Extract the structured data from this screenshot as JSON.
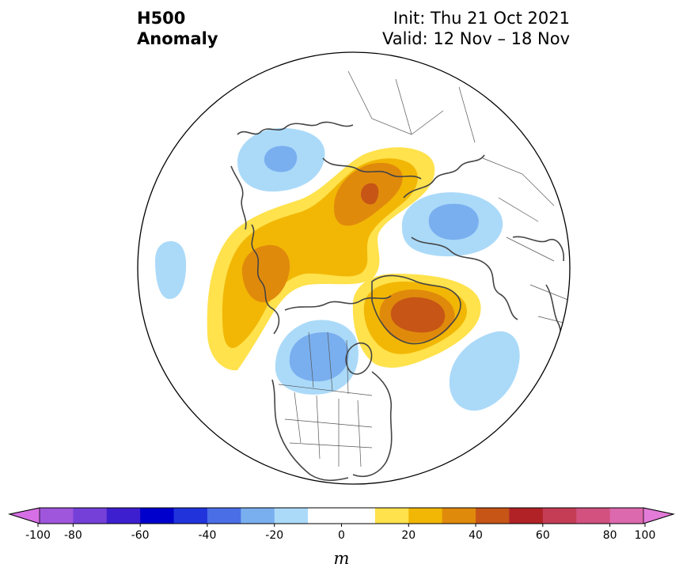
{
  "header": {
    "title_line1": "H500",
    "title_line2": "Anomaly",
    "init_line": "Init: Thu 21 Oct 2021",
    "valid_line": "Valid: 12 Nov – 18 Nov"
  },
  "map": {
    "projection": "north-polar-stereographic",
    "variable": "500 hPa geopotential height anomaly",
    "anomalies": [
      {
        "region": "Alaska / Bering",
        "sign": "positive",
        "peak": 30
      },
      {
        "region": "Arctic Ocean / Siberian Arctic",
        "sign": "positive",
        "peak": 40
      },
      {
        "region": "Greenland",
        "sign": "positive",
        "peak": 40
      },
      {
        "region": "Central Canada / northern US",
        "sign": "negative",
        "peak": -30
      },
      {
        "region": "Eastern Europe / Russia",
        "sign": "negative",
        "peak": -30
      },
      {
        "region": "Central Asia",
        "sign": "negative",
        "peak": -20
      },
      {
        "region": "North Pacific",
        "sign": "negative",
        "peak": -20
      },
      {
        "region": "Central Atlantic",
        "sign": "negative",
        "peak": -20
      }
    ]
  },
  "colorbar": {
    "unit": "m",
    "ticks": [
      "-100",
      "-80",
      "-60",
      "-40",
      "-20",
      "0",
      "20",
      "40",
      "60",
      "80",
      "100"
    ],
    "bounds": [
      -100,
      100
    ],
    "step": 10,
    "colors": [
      "#9f56dc",
      "#7440d8",
      "#3d1fd0",
      "#0000cd",
      "#2134dc",
      "#4a6ee6",
      "#79afef",
      "#abdaf9",
      "#ffffff",
      "#ffffff",
      "#ffe24c",
      "#f2b705",
      "#e08a0c",
      "#c65516",
      "#b02226",
      "#c43d55",
      "#d2517f",
      "#dc69ad"
    ],
    "under_color": "#d66fe5",
    "over_color": "#e37bd9"
  }
}
